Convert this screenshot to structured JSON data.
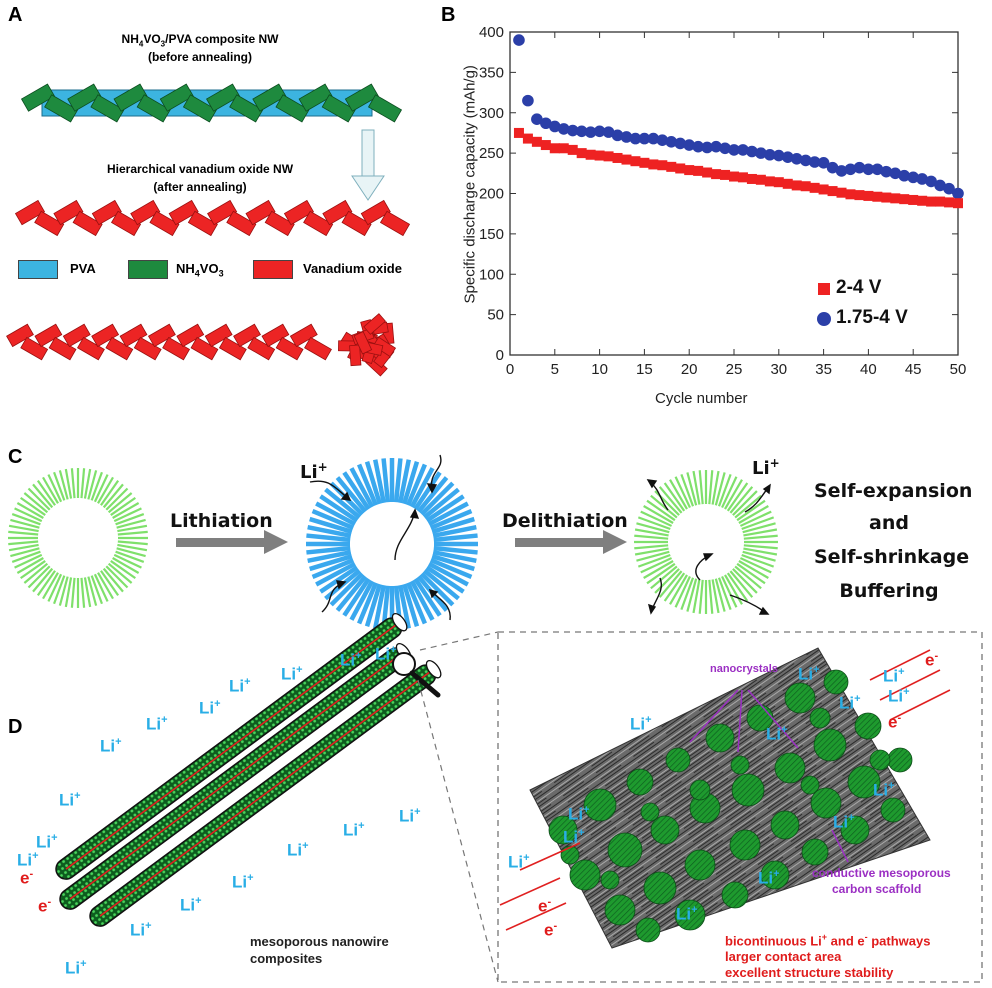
{
  "panels": {
    "a": "A",
    "b": "B",
    "c": "C",
    "d": "D"
  },
  "panel_a": {
    "title_before_line1_prefix": "NH",
    "title_before_line1_sub4": "4",
    "title_before_line1_mid": "VO",
    "title_before_line1_sub3": "3",
    "title_before_line1_suffix": "/PVA composite NW",
    "title_before_line2": "(before annealing)",
    "title_after_line1": "Hierarchical vanadium oxide NW",
    "title_after_line2": "(after annealing)",
    "legend": {
      "pva": "PVA",
      "nh4vo3_prefix": "NH",
      "nh4vo3_sub4": "4",
      "nh4vo3_mid": "VO",
      "nh4vo3_sub3": "3",
      "vanadium": "Vanadium oxide"
    },
    "colors": {
      "pva": "#3cb4e0",
      "nh4vo3": "#1e8a3e",
      "vanadium": "#ec2424"
    }
  },
  "chart_data": {
    "type": "scatter",
    "title": "",
    "xlabel": "Cycle number",
    "ylabel": "Specific discharge capacity (mAh/g)",
    "xlim": [
      0,
      50
    ],
    "ylim": [
      0,
      400
    ],
    "xticks": [
      "0",
      "5",
      "10",
      "15",
      "20",
      "25",
      "30",
      "35",
      "40",
      "45",
      "50"
    ],
    "yticks": [
      "0",
      "50",
      "100",
      "150",
      "200",
      "250",
      "300",
      "350",
      "400"
    ],
    "legend_position": "bottom-right",
    "series": [
      {
        "name": "2-4 V",
        "marker": "square",
        "color": "#ee2222",
        "x": [
          1,
          2,
          3,
          4,
          5,
          6,
          7,
          8,
          9,
          10,
          11,
          12,
          13,
          14,
          15,
          16,
          17,
          18,
          19,
          20,
          21,
          22,
          23,
          24,
          25,
          26,
          27,
          28,
          29,
          30,
          31,
          32,
          33,
          34,
          35,
          36,
          37,
          38,
          39,
          40,
          41,
          42,
          43,
          44,
          45,
          46,
          47,
          48,
          49,
          50
        ],
        "y": [
          275,
          268,
          264,
          260,
          256,
          256,
          254,
          250,
          248,
          247,
          246,
          244,
          242,
          240,
          238,
          236,
          235,
          233,
          231,
          229,
          228,
          226,
          224,
          223,
          221,
          220,
          218,
          217,
          215,
          214,
          212,
          210,
          209,
          207,
          205,
          203,
          201,
          199,
          198,
          197,
          196,
          195,
          194,
          193,
          192,
          191,
          190,
          190,
          189,
          188
        ]
      },
      {
        "name": "1.75-4 V",
        "marker": "circle",
        "color": "#2b3fa8",
        "x": [
          1,
          2,
          3,
          4,
          5,
          6,
          7,
          8,
          9,
          10,
          11,
          12,
          13,
          14,
          15,
          16,
          17,
          18,
          19,
          20,
          21,
          22,
          23,
          24,
          25,
          26,
          27,
          28,
          29,
          30,
          31,
          32,
          33,
          34,
          35,
          36,
          37,
          38,
          39,
          40,
          41,
          42,
          43,
          44,
          45,
          46,
          47,
          48,
          49,
          50
        ],
        "y": [
          390,
          315,
          292,
          287,
          283,
          280,
          278,
          277,
          276,
          277,
          276,
          272,
          270,
          268,
          268,
          268,
          266,
          264,
          262,
          260,
          258,
          257,
          258,
          256,
          254,
          254,
          252,
          250,
          248,
          247,
          245,
          243,
          241,
          239,
          238,
          232,
          228,
          230,
          232,
          230,
          230,
          227,
          225,
          222,
          220,
          218,
          215,
          210,
          206,
          200
        ]
      }
    ]
  },
  "panel_c": {
    "lithiation": "Lithiation",
    "delithiation": "Delithiation",
    "li_label": "Li",
    "li_sup": "+",
    "line1": "Self-expansion",
    "line2": "and",
    "line3": "Self-shrinkage",
    "line4": "Buffering",
    "colors": {
      "green": "#7fe06b",
      "blue": "#3aa8ee",
      "arrow": "#7f7f7f"
    }
  },
  "panel_d": {
    "li": "Li",
    "li_sup": "+",
    "e": "e",
    "e_sup": "-",
    "left_caption_line1": "mesoporous nanowire",
    "left_caption_line2": "composites",
    "nanocrystals": "nanocrystals",
    "scaffold_line1": "conductive mesoporous",
    "scaffold_line2": "carbon scaffold",
    "note_line1_a": "bicontinuous Li",
    "note_line1_sup1": "+",
    "note_line1_b": " and e",
    "note_line1_sup2": "-",
    "note_line1_c": " pathways",
    "note_line2": "larger contact area",
    "note_line3": "excellent structure stability"
  }
}
